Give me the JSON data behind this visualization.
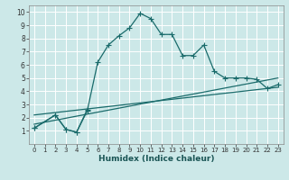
{
  "xlabel": "Humidex (Indice chaleur)",
  "bg_color": "#cce8e8",
  "grid_color": "#ffffff",
  "line_color": "#1a6b6b",
  "xlim": [
    -0.5,
    23.5
  ],
  "ylim": [
    0,
    10.5
  ],
  "xticks": [
    0,
    1,
    2,
    3,
    4,
    5,
    6,
    7,
    8,
    9,
    10,
    11,
    12,
    13,
    14,
    15,
    16,
    17,
    18,
    19,
    20,
    21,
    22,
    23
  ],
  "yticks": [
    1,
    2,
    3,
    4,
    5,
    6,
    7,
    8,
    9,
    10
  ],
  "line1_x": [
    0,
    2,
    3,
    4,
    5,
    6,
    7,
    8,
    9,
    10,
    11,
    12,
    13,
    14,
    15,
    16,
    17,
    18,
    19,
    20,
    21,
    22,
    23
  ],
  "line1_y": [
    1.2,
    2.2,
    1.1,
    0.9,
    2.5,
    6.2,
    7.5,
    8.2,
    8.8,
    9.9,
    9.5,
    8.3,
    8.3,
    6.7,
    6.7,
    7.5,
    5.5,
    5.0,
    5.0,
    5.0,
    4.9,
    4.2,
    4.5
  ],
  "line2_x": [
    0,
    2,
    3,
    4,
    5
  ],
  "line2_y": [
    1.2,
    2.2,
    1.1,
    0.9,
    2.6
  ],
  "line3_x": [
    0,
    23
  ],
  "line3_y": [
    1.5,
    5.0
  ],
  "line4_x": [
    0,
    23
  ],
  "line4_y": [
    2.2,
    4.3
  ],
  "markersize": 3,
  "linewidth": 0.9
}
